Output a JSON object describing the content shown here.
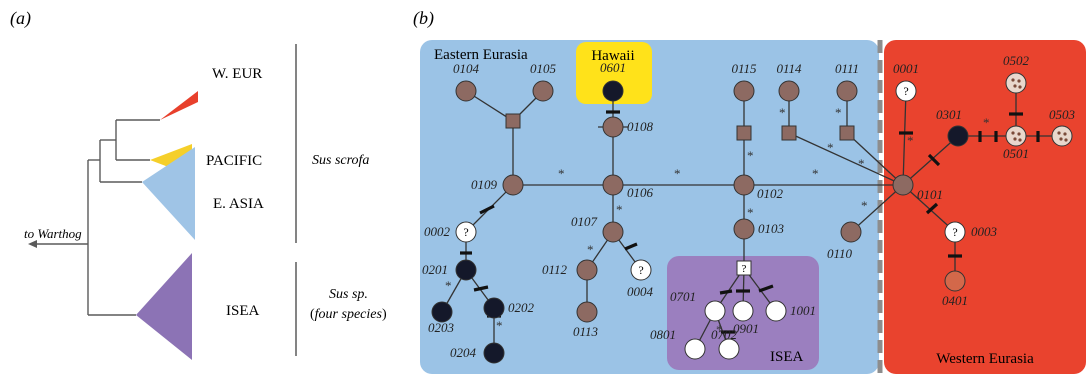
{
  "panel_a": {
    "label": "(a)",
    "outgroup_label": "to Warthog",
    "clades": [
      {
        "name": "W. EUR",
        "color": "#e8402c"
      },
      {
        "name": "PACIFIC",
        "color": "#f5cf2a"
      },
      {
        "name": "E. ASIA",
        "color": "#9fc4e6"
      },
      {
        "name": "ISEA",
        "color": "#8c73b5"
      }
    ],
    "group_sus_scrofa": "Sus scrofa",
    "group_sus_sp": "Sus sp.",
    "group_sus_sp_note": "four species"
  },
  "panel_b": {
    "label": "(b)",
    "regions": {
      "eastern_eurasia": {
        "label": "Eastern Eurasia",
        "color": "#9bc3e6"
      },
      "hawaii": {
        "label": "Hawaii",
        "color": "#ffe21a"
      },
      "isea": {
        "label": "ISEA",
        "color": "#9b7fbf"
      },
      "western_eurasia": {
        "label": "Western Eurasia",
        "color": "#e9432e"
      }
    },
    "colors": {
      "brown": "#8d6a62",
      "dark": "#14182a",
      "white": "#ffffff",
      "edge": "#333333",
      "orange": "#d3684a"
    },
    "unknown_symbol": "?",
    "mutation_symbol": "*",
    "nodes": [
      {
        "id": "0104",
        "type": "brown"
      },
      {
        "id": "0105",
        "type": "brown"
      },
      {
        "id": "0109",
        "type": "brown"
      },
      {
        "id": "0002",
        "type": "unknown"
      },
      {
        "id": "0201",
        "type": "dark"
      },
      {
        "id": "0203",
        "type": "dark"
      },
      {
        "id": "0202",
        "type": "dark"
      },
      {
        "id": "0204",
        "type": "dark"
      },
      {
        "id": "0601",
        "type": "dark"
      },
      {
        "id": "0108",
        "type": "brown"
      },
      {
        "id": "0106",
        "type": "brown"
      },
      {
        "id": "0107",
        "type": "brown"
      },
      {
        "id": "0112",
        "type": "brown"
      },
      {
        "id": "0113",
        "type": "brown"
      },
      {
        "id": "0004",
        "type": "unknown"
      },
      {
        "id": "0115",
        "type": "brown"
      },
      {
        "id": "0102",
        "type": "brown"
      },
      {
        "id": "0103",
        "type": "brown"
      },
      {
        "id": "0701",
        "type": "white"
      },
      {
        "id": "0801",
        "type": "white"
      },
      {
        "id": "0901",
        "type": "white"
      },
      {
        "id": "0702",
        "type": "white"
      },
      {
        "id": "1001",
        "type": "white"
      },
      {
        "id": "0114",
        "type": "brown"
      },
      {
        "id": "0111",
        "type": "brown"
      },
      {
        "id": "0110",
        "type": "brown"
      },
      {
        "id": "0101",
        "type": "brown"
      },
      {
        "id": "0001",
        "type": "unknown"
      },
      {
        "id": "0301",
        "type": "dark"
      },
      {
        "id": "0501",
        "type": "spotted"
      },
      {
        "id": "0502",
        "type": "spotted"
      },
      {
        "id": "0503",
        "type": "spotted"
      },
      {
        "id": "0003",
        "type": "unknown"
      },
      {
        "id": "0401",
        "type": "orange"
      }
    ]
  }
}
